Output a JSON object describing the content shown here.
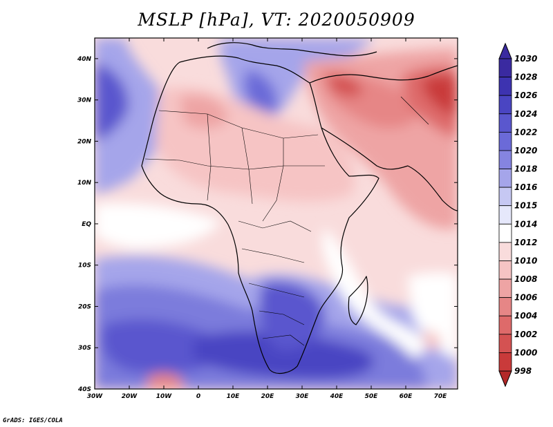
{
  "title": "MSLP [hPa], VT: 2020050909",
  "footer": "GrADS: IGES/COLA",
  "map": {
    "x_ticks": [
      "30W",
      "20W",
      "10W",
      "0",
      "10E",
      "20E",
      "30E",
      "40E",
      "50E",
      "60E",
      "70E"
    ],
    "y_ticks": [
      "40N",
      "30N",
      "20N",
      "10N",
      "EQ",
      "10S",
      "20S",
      "30S",
      "40S"
    ],
    "lon_range": [
      -30,
      75
    ],
    "lat_range": [
      -40,
      45
    ]
  },
  "colorbar": {
    "levels": [
      "1030",
      "1028",
      "1026",
      "1024",
      "1022",
      "1020",
      "1018",
      "1016",
      "1015",
      "1014",
      "1012",
      "1010",
      "1008",
      "1006",
      "1004",
      "1002",
      "1000",
      "998"
    ],
    "colors": [
      "#3a2aa0",
      "#3d33b0",
      "#4a45c2",
      "#5a57ce",
      "#6b6ad8",
      "#8584e0",
      "#a5a5ea",
      "#c6c8f3",
      "#e6e8fb",
      "#ffffff",
      "#f9dcdc",
      "#f6c4c4",
      "#eea4a4",
      "#e68686",
      "#de6a6a",
      "#d45252",
      "#c93a3a",
      "#b32828"
    ]
  },
  "regions": {
    "high_south_atlantic": "#5a57ce",
    "high_south_africa": "#4a45c2",
    "high_north_atlantic": "#5a57ce",
    "high_mediterranean": "#6b6ad8",
    "low_india": "#de6a6a",
    "low_mideast": "#d45252",
    "low_sahara": "#f6c4c4"
  }
}
